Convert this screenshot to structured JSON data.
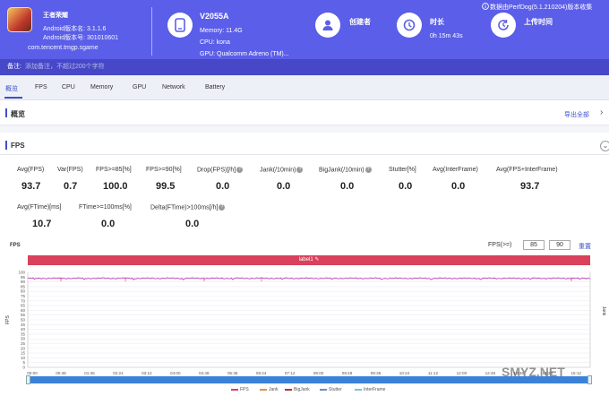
{
  "app": {
    "name": "王者荣耀",
    "version_name": "Android版本名: 3.1.1.6",
    "version_code": "Android版本号: 301010601",
    "package": "com.tencent.tmgp.sgame"
  },
  "device": {
    "name": "V2055A",
    "memory": "Memory: 11.4G",
    "cpu": "CPU: kona",
    "gpu": "GPU: Qualcomm Adreno (TM)..."
  },
  "creator": {
    "label": "创建者"
  },
  "duration": {
    "label": "时长",
    "value": "0h 15m 43s"
  },
  "upload": {
    "label": "上传时间"
  },
  "source": "数据由PerfDog(5.1.210204)版本收集",
  "remark": {
    "label": "备注:",
    "placeholder": "添加备注，不超过200个字符"
  },
  "tabs": [
    "概览",
    "FPS",
    "CPU",
    "Memory",
    "GPU",
    "Network",
    "Battery"
  ],
  "overview": {
    "title": "概览",
    "export": "导出全部"
  },
  "fps_section": {
    "title": "FPS"
  },
  "stats_row1": [
    {
      "label": "Avg(FPS)",
      "value": "93.7",
      "help": false
    },
    {
      "label": "Var(FPS)",
      "value": "0.7",
      "help": false
    },
    {
      "label": "FPS>=85[%]",
      "value": "100.0",
      "help": false
    },
    {
      "label": "FPS>=90[%]",
      "value": "99.5",
      "help": false
    },
    {
      "label": "Drop(FPS)[/h]",
      "value": "0.0",
      "help": true
    },
    {
      "label": "Jank(/10min)",
      "value": "0.0",
      "help": true
    },
    {
      "label": "BigJank(/10min)",
      "value": "0.0",
      "help": true
    },
    {
      "label": "Stutter[%]",
      "value": "0.0",
      "help": false
    },
    {
      "label": "Avg(InterFrame)",
      "value": "0.0",
      "help": false
    },
    {
      "label": "Avg(FPS+InterFrame)",
      "value": "93.7",
      "help": false
    }
  ],
  "stats_row2": [
    {
      "label": "Avg(FTime)[ms]",
      "value": "10.7",
      "help": false
    },
    {
      "label": "FTime>=100ms[%]",
      "value": "0.0",
      "help": false
    },
    {
      "label": "Delta(FTime)>100ms[/h]",
      "value": "0.0",
      "help": true
    }
  ],
  "chart_controls": {
    "title": "FPS",
    "filter_label": "FPS(>=)",
    "filter_low": "85",
    "filter_high": "90",
    "reset": "重置",
    "label_tag": "label1"
  },
  "chart_data": {
    "type": "line",
    "ylabel": "FPS",
    "y2label": "Jank",
    "ylim": [
      0,
      100
    ],
    "yticks": [
      "100",
      "95",
      "90",
      "85",
      "80",
      "75",
      "70",
      "65",
      "60",
      "55",
      "50",
      "45",
      "40",
      "35",
      "30",
      "25",
      "20",
      "15",
      "10",
      "5",
      "0"
    ],
    "xticks": [
      "00:00",
      "00:48",
      "01:36",
      "02:24",
      "03:12",
      "04:00",
      "04:48",
      "05:36",
      "06:24",
      "07:12",
      "08:00",
      "08:48",
      "09:36",
      "10:24",
      "11:12",
      "12:00",
      "12:48",
      "13:36",
      "14:24",
      "15:12"
    ],
    "series": [
      {
        "name": "FPS",
        "color": "#c040c0",
        "approx_value": 93.7
      }
    ],
    "legend": [
      "FPS",
      "Jank",
      "BigJank",
      "Stutter",
      "InterFrame"
    ],
    "legend_colors": [
      "#e04060",
      "#e09050",
      "#c03030",
      "#6c8cc0",
      "#7fbfe0"
    ]
  },
  "watermark": "SMYZ.NET"
}
